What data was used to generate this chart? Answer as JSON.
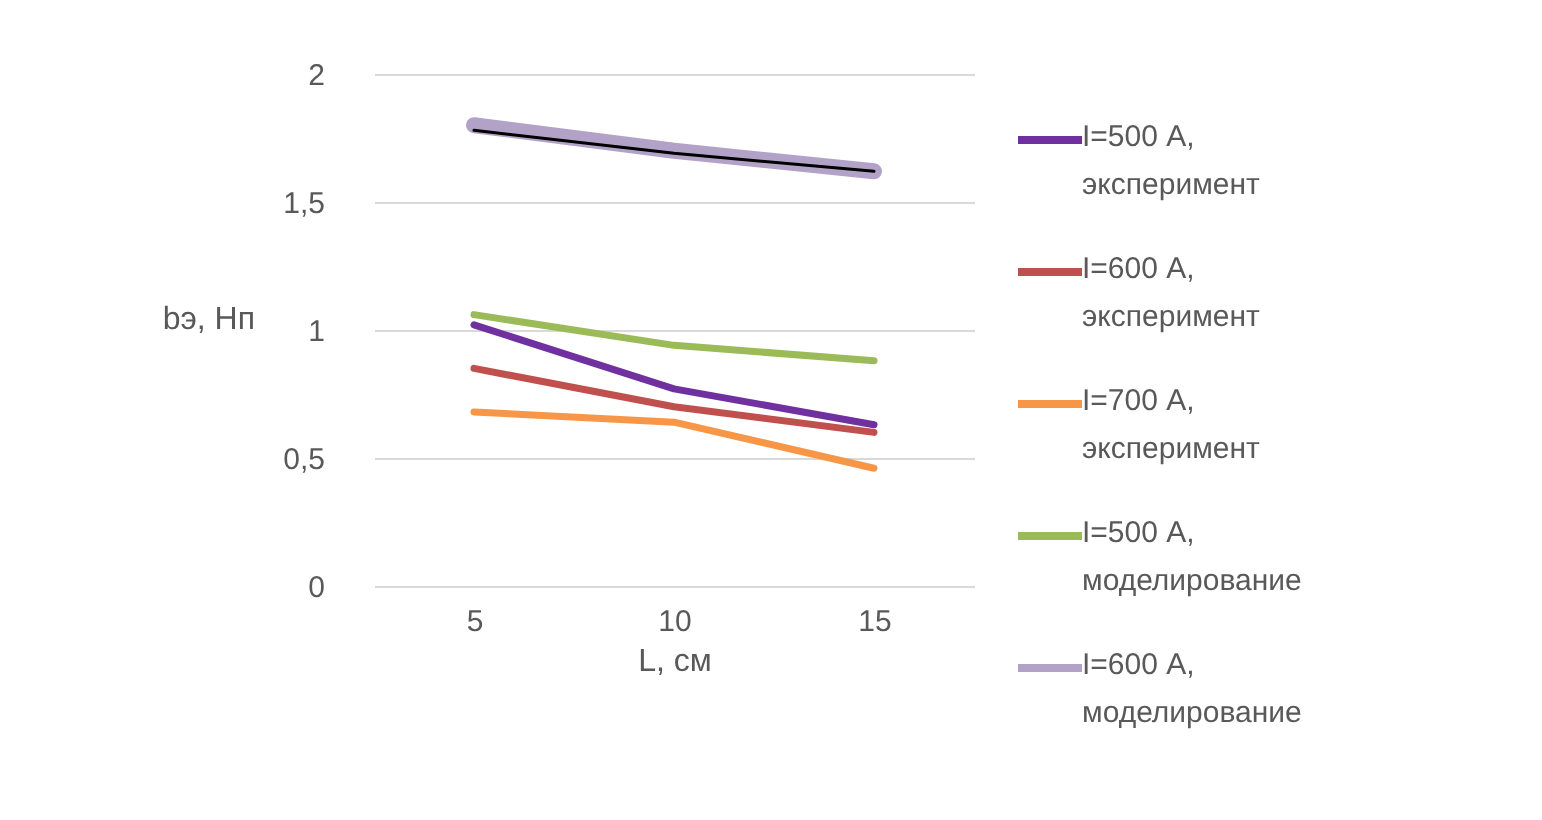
{
  "chart_data": {
    "type": "line",
    "xlabel": "L, см",
    "ylabel": "bэ, Нп",
    "categories": [
      "5",
      "10",
      "15"
    ],
    "series": [
      {
        "name": "I=500 А, эксперимент",
        "color": "#7030a0",
        "values": [
          1.02,
          0.77,
          0.63
        ]
      },
      {
        "name": "I=600 А, эксперимент",
        "color": "#c0504d",
        "values": [
          0.85,
          0.7,
          0.6
        ]
      },
      {
        "name": "I=700 А, эксперимент",
        "color": "#f79646",
        "values": [
          0.68,
          0.64,
          0.46
        ]
      },
      {
        "name": "I=500 А, моделирование",
        "color": "#9bbb59",
        "values": [
          1.06,
          0.94,
          0.88
        ]
      },
      {
        "name": "I=600 А, моделирование",
        "color": "#b3a2c7",
        "values": [
          1.8,
          1.7,
          1.62
        ]
      },
      {
        "color": "#000000",
        "values": [
          1.78,
          1.69,
          1.62
        ]
      }
    ],
    "ylim": [
      0,
      2
    ],
    "yticks": [
      0,
      {
        "value": 0.5,
        "label": "0,5"
      },
      1,
      {
        "value": 1.5,
        "label": "1,5"
      },
      2
    ],
    "grid": "y",
    "legend": "right",
    "marker": "none",
    "line_style": "solid"
  }
}
